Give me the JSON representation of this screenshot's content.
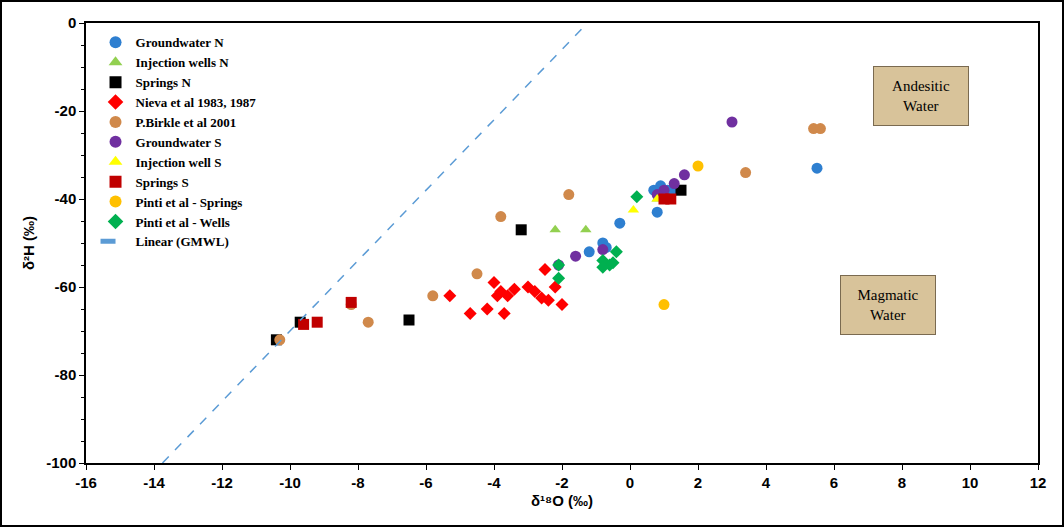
{
  "chart_data": {
    "type": "scatter",
    "x_label": "δ¹⁸O (‰)",
    "y_label": "δ²H (‰)",
    "xlim": [
      -16,
      12
    ],
    "xticks": [
      -16,
      -14,
      -12,
      -10,
      -8,
      -6,
      -4,
      -2,
      0,
      2,
      4,
      6,
      8,
      10,
      12
    ],
    "ylim": [
      -100,
      0
    ],
    "yticks": [
      -100,
      -80,
      -60,
      -40,
      -20,
      0
    ],
    "grid": false,
    "legend": "top-left",
    "series": [
      {
        "name": "Groundwater N",
        "color": "#2E7FD0",
        "marker": "circle",
        "x": [
          5.5,
          0.8,
          0.7,
          0.9,
          1.1,
          -0.3,
          -1.2,
          -0.8,
          -0.7,
          1.3
        ],
        "y": [
          -33,
          -43,
          -38,
          -37,
          -38,
          -45.5,
          -52,
          -50,
          -51,
          -38
        ]
      },
      {
        "name": "Injection wells N",
        "color": "#92D050",
        "marker": "triangle-up",
        "x": [
          -2.2,
          -1.3,
          0.8
        ],
        "y": [
          -47,
          -47,
          -40
        ]
      },
      {
        "name": "Springs N",
        "color": "#000000",
        "marker": "square",
        "x": [
          -10.4,
          -9.7,
          -6.5,
          -3.2,
          1.5
        ],
        "y": [
          -72,
          -68,
          -67.5,
          -47,
          -38
        ]
      },
      {
        "name": "Nieva et al 1983, 1987",
        "color": "#FF0000",
        "marker": "diamond",
        "x": [
          -5.3,
          -4.7,
          -4.2,
          -4,
          -3.9,
          -3.8,
          -3.7,
          -3.6,
          -3.4,
          -3,
          -2.8,
          -2.6,
          -2.5,
          -2.4,
          -2.2,
          -2
        ],
        "y": [
          -62,
          -66,
          -65,
          -59,
          -62,
          -61,
          -66,
          -62,
          -60.5,
          -60,
          -61,
          -62.5,
          -56,
          -63,
          -60,
          -64
        ]
      },
      {
        "name": "P.Birkle et al 2001",
        "color": "#D0894B",
        "marker": "circle",
        "x": [
          -10.3,
          -8.2,
          -7.7,
          -5.8,
          -4.5,
          -3.8,
          -1.8,
          3.4,
          5.4,
          5.6
        ],
        "y": [
          -72,
          -64,
          -68,
          -62,
          -57,
          -44,
          -39,
          -34,
          -24,
          -24
        ]
      },
      {
        "name": "Groundwater S",
        "color": "#7030A0",
        "marker": "circle",
        "x": [
          3,
          1.6,
          1.3,
          1,
          -1.6,
          -2.1,
          -0.8,
          0.8
        ],
        "y": [
          -22.5,
          -34.5,
          -36.5,
          -38,
          -53,
          -55,
          -51.5,
          -39
        ]
      },
      {
        "name": "Injection well S",
        "color": "#FFFF00",
        "marker": "triangle-up",
        "x": [
          0.1,
          0.8
        ],
        "y": [
          -42.5,
          -40
        ]
      },
      {
        "name": "Springs S",
        "color": "#C00000",
        "marker": "square",
        "x": [
          -9.6,
          -9.2,
          -8.2,
          1.2,
          1
        ],
        "y": [
          -68.5,
          -68,
          -63.5,
          -40,
          -40
        ]
      },
      {
        "name": "Pinti et al - Springs",
        "color": "#FFC000",
        "marker": "circle",
        "x": [
          2,
          1
        ],
        "y": [
          -32.5,
          -64
        ]
      },
      {
        "name": "Pinti et al - Wells",
        "color": "#00B050",
        "marker": "diamond",
        "x": [
          0.2,
          -0.4,
          -0.8,
          -0.6,
          -0.8,
          -0.5,
          -2.1,
          -2.1
        ],
        "y": [
          -39.5,
          -52,
          -54,
          -55,
          -55.5,
          -54.5,
          -58,
          -55
        ]
      },
      {
        "name": "Linear (GMWL)",
        "color": "#5B9BD5",
        "type": "line",
        "line_style": "dash",
        "x": [
          -13.75,
          -1.25
        ],
        "y": [
          -100,
          0
        ]
      }
    ],
    "annotations": [
      {
        "text": "Andesitic Water",
        "x": 8.55,
        "y": -16.5
      },
      {
        "text": "Magmatic Water",
        "x": 7.6,
        "y": -64
      }
    ]
  }
}
